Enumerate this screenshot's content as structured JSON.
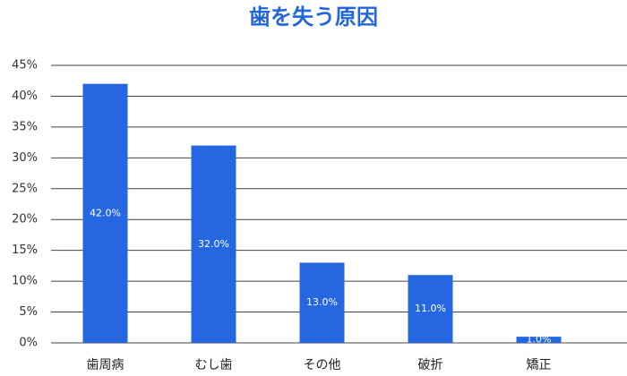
{
  "chart_data": {
    "type": "bar",
    "title": "歯を失う原因",
    "categories": [
      "歯周病",
      "むし歯",
      "その他",
      "破折",
      "矯正"
    ],
    "values": [
      42,
      32,
      13,
      11,
      1
    ],
    "value_labels": [
      "42.0%",
      "32.0%",
      "13.0%",
      "11.0%",
      "1.0%"
    ],
    "color": "#2467e0",
    "ylim": [
      0,
      45
    ],
    "yticks": [
      {
        "value": 0,
        "label": "0%"
      },
      {
        "value": 5,
        "label": "5%"
      },
      {
        "value": 10,
        "label": "10%"
      },
      {
        "value": 15,
        "label": "15%"
      },
      {
        "value": 20,
        "label": "20%"
      },
      {
        "value": 25,
        "label": "25%"
      },
      {
        "value": 30,
        "label": "30%"
      },
      {
        "value": 35,
        "label": "35%"
      },
      {
        "value": 40,
        "label": "40%"
      },
      {
        "value": 45,
        "label": "45%"
      }
    ],
    "grid": true
  }
}
